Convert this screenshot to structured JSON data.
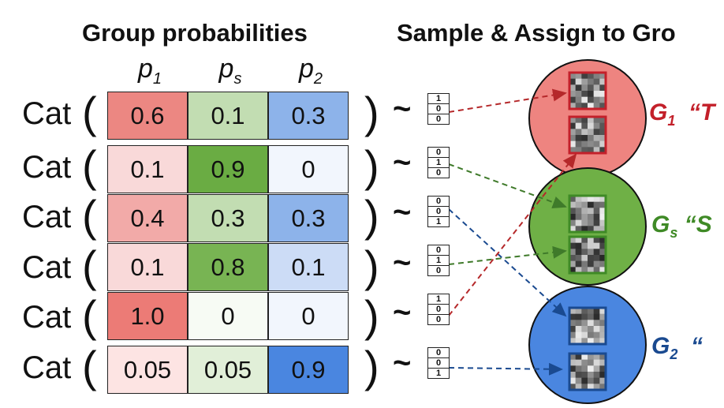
{
  "titles": {
    "left": "Group probabilities",
    "right": "Sample & Assign to Gro"
  },
  "columns": [
    {
      "p": "p",
      "sub": "1"
    },
    {
      "p": "p",
      "sub": "s"
    },
    {
      "p": "p",
      "sub": "2"
    }
  ],
  "cat_label": "Cat",
  "tilde": "~",
  "rows": [
    {
      "values": [
        "0.6",
        "0.1",
        "0.3"
      ],
      "onehot": [
        "1",
        "0",
        "0"
      ],
      "colors": [
        "#ec8782",
        "#c2ddb2",
        "#8db3ea"
      ]
    },
    {
      "values": [
        "0.1",
        "0.9",
        "0"
      ],
      "onehot": [
        "0",
        "1",
        "0"
      ],
      "colors": [
        "#f9d9d9",
        "#6aac43",
        "#f2f6fd"
      ]
    },
    {
      "values": [
        "0.4",
        "0.3",
        "0.3"
      ],
      "onehot": [
        "0",
        "0",
        "1"
      ],
      "colors": [
        "#f2aaa8",
        "#c2ddb2",
        "#8db3ea"
      ]
    },
    {
      "values": [
        "0.1",
        "0.8",
        "0.1"
      ],
      "onehot": [
        "0",
        "1",
        "0"
      ],
      "colors": [
        "#f9d9d9",
        "#78b453",
        "#ccdcf6"
      ]
    },
    {
      "values": [
        "1.0",
        "0",
        "0"
      ],
      "onehot": [
        "1",
        "0",
        "0"
      ],
      "colors": [
        "#ec7b76",
        "#f7fbf4",
        "#f2f6fd"
      ]
    },
    {
      "values": [
        "0.05",
        "0.05",
        "0.9"
      ],
      "onehot": [
        "0",
        "0",
        "1"
      ],
      "colors": [
        "#fde4e3",
        "#e1efd8",
        "#4a86e0"
      ]
    }
  ],
  "groups": [
    {
      "name": "G",
      "sub": "1",
      "quote": "“T",
      "color": "#c3202a",
      "fill": "#ee8480"
    },
    {
      "name": "G",
      "sub": "s",
      "quote": "“S",
      "color": "#3f8a26",
      "fill": "#6fb046"
    },
    {
      "name": "G",
      "sub": "2",
      "quote": "“",
      "color": "#1a4a90",
      "fill": "#4a86e0"
    }
  ],
  "colors": {
    "red_arrow": "#b5282a",
    "green_arrow": "#3f7a2a",
    "blue_arrow": "#1a4a90",
    "border": "#222222"
  }
}
